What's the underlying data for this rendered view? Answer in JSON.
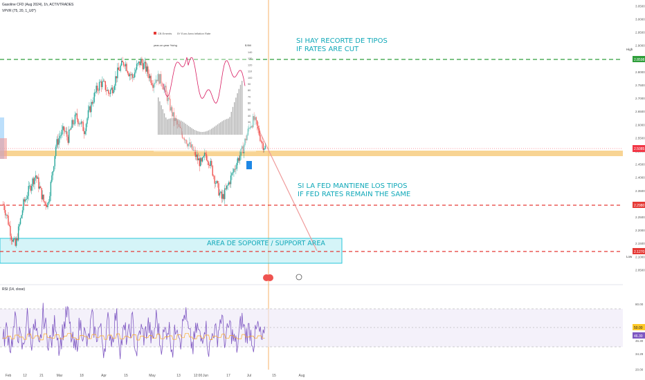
{
  "header": {
    "symbol_line": "Gasoline CFD (Aug 2024), 1h, ACTIVTRADES",
    "indicator_line": "VPVR (75, 20, 1_U0*)"
  },
  "overlay": {
    "legend_a": "CB Ements",
    "legend_b": "5Y Euro Area Inflation Rate",
    "left_title": "year-on-year %chg",
    "right_title": "$ Bill",
    "ticks": [
      "140",
      "130",
      "120",
      "110",
      "100",
      "90",
      "80",
      "70",
      "60",
      "50",
      "40",
      "30"
    ]
  },
  "annotations": {
    "cut_line1": "SI HAY RECORTE DE TIPOS",
    "cut_line2": "IF RATES ARE CUT",
    "hold_line1": "SI LA FED MANTIENE LOS TIPOS",
    "hold_line2": "IF FED RATES REMAIN THE SAME",
    "support": "AREA DE SOPORTE / SUPPORT  AREA"
  },
  "price_axis": {
    "ticks": [
      "3.0500",
      "3.0000",
      "2.9500",
      "2.9000",
      "2.8500",
      "2.8000",
      "2.7500",
      "2.7000",
      "2.6500",
      "2.6000",
      "2.5500",
      "2.5000",
      "2.4500",
      "2.4000",
      "2.3500",
      "2.3000",
      "2.2500",
      "2.2000",
      "2.1500",
      "2.1000",
      "2.0500"
    ],
    "high_label": "High",
    "high_value": "2.8598",
    "green_level": "2.8598",
    "current_price": "2.5085",
    "red_mid": "2.2980",
    "red_low": "2.1270",
    "low_label": "Low",
    "low_value": "2.1000"
  },
  "rsi": {
    "title": "RSI (14, close)",
    "ticks": [
      "80.00",
      "58.12",
      "50.00",
      "46.30",
      "34.29",
      "20.00"
    ],
    "value_a": "50.00",
    "value_b": "46.30"
  },
  "time_axis": [
    "Feb",
    "12",
    "21",
    "Mar",
    "18",
    "Apr",
    "15",
    "May",
    "13",
    "12:00",
    "Jun",
    "17",
    "Jul",
    "15",
    "Aug"
  ],
  "colors": {
    "up": "#26a69a",
    "down": "#ef5350",
    "green_line": "#2e9e3a",
    "red_line": "#e53935",
    "cyan_text": "#0fa8b8",
    "rsi_line": "#7e57c2",
    "current_price_bg": "#f23645"
  },
  "chart_data": {
    "type": "line",
    "price_range": [
      2.0,
      3.06
    ],
    "rsi_range": [
      20,
      90
    ],
    "levels": {
      "green": 2.8598,
      "current": 2.5085,
      "orange_band": [
        2.497,
        2.509
      ],
      "red_mid": 2.298,
      "red_low": 2.127
    },
    "support_area": [
      2.1,
      2.162
    ],
    "price_path": [
      2.3,
      2.25,
      2.18,
      2.14,
      2.22,
      2.3,
      2.34,
      2.38,
      2.41,
      2.36,
      2.31,
      2.3,
      2.4,
      2.52,
      2.56,
      2.58,
      2.55,
      2.6,
      2.63,
      2.61,
      2.58,
      2.64,
      2.69,
      2.73,
      2.76,
      2.75,
      2.72,
      2.74,
      2.79,
      2.82,
      2.84,
      2.8,
      2.78,
      2.82,
      2.84,
      2.82,
      2.79,
      2.76,
      2.78,
      2.77,
      2.73,
      2.68,
      2.63,
      2.6,
      2.57,
      2.55,
      2.52,
      2.5,
      2.47,
      2.45,
      2.49,
      2.46,
      2.41,
      2.36,
      2.32,
      2.35,
      2.39,
      2.43,
      2.47,
      2.5,
      2.55,
      2.6,
      2.62,
      2.58,
      2.53,
      2.51
    ],
    "rsi_path": [
      45,
      58,
      40,
      64,
      52,
      38,
      70,
      46,
      60,
      35,
      72,
      50,
      44,
      66,
      40,
      58,
      74,
      48,
      36,
      62,
      55,
      42,
      68,
      50,
      60,
      38,
      64,
      46,
      72,
      40,
      56,
      48,
      66,
      34,
      58,
      50,
      62,
      44,
      70,
      42,
      54,
      60,
      38,
      66,
      48,
      74,
      52,
      40,
      60,
      46,
      64,
      36,
      58,
      50,
      70,
      44,
      62,
      48,
      40,
      68,
      52,
      58,
      44,
      60,
      46,
      50
    ]
  }
}
